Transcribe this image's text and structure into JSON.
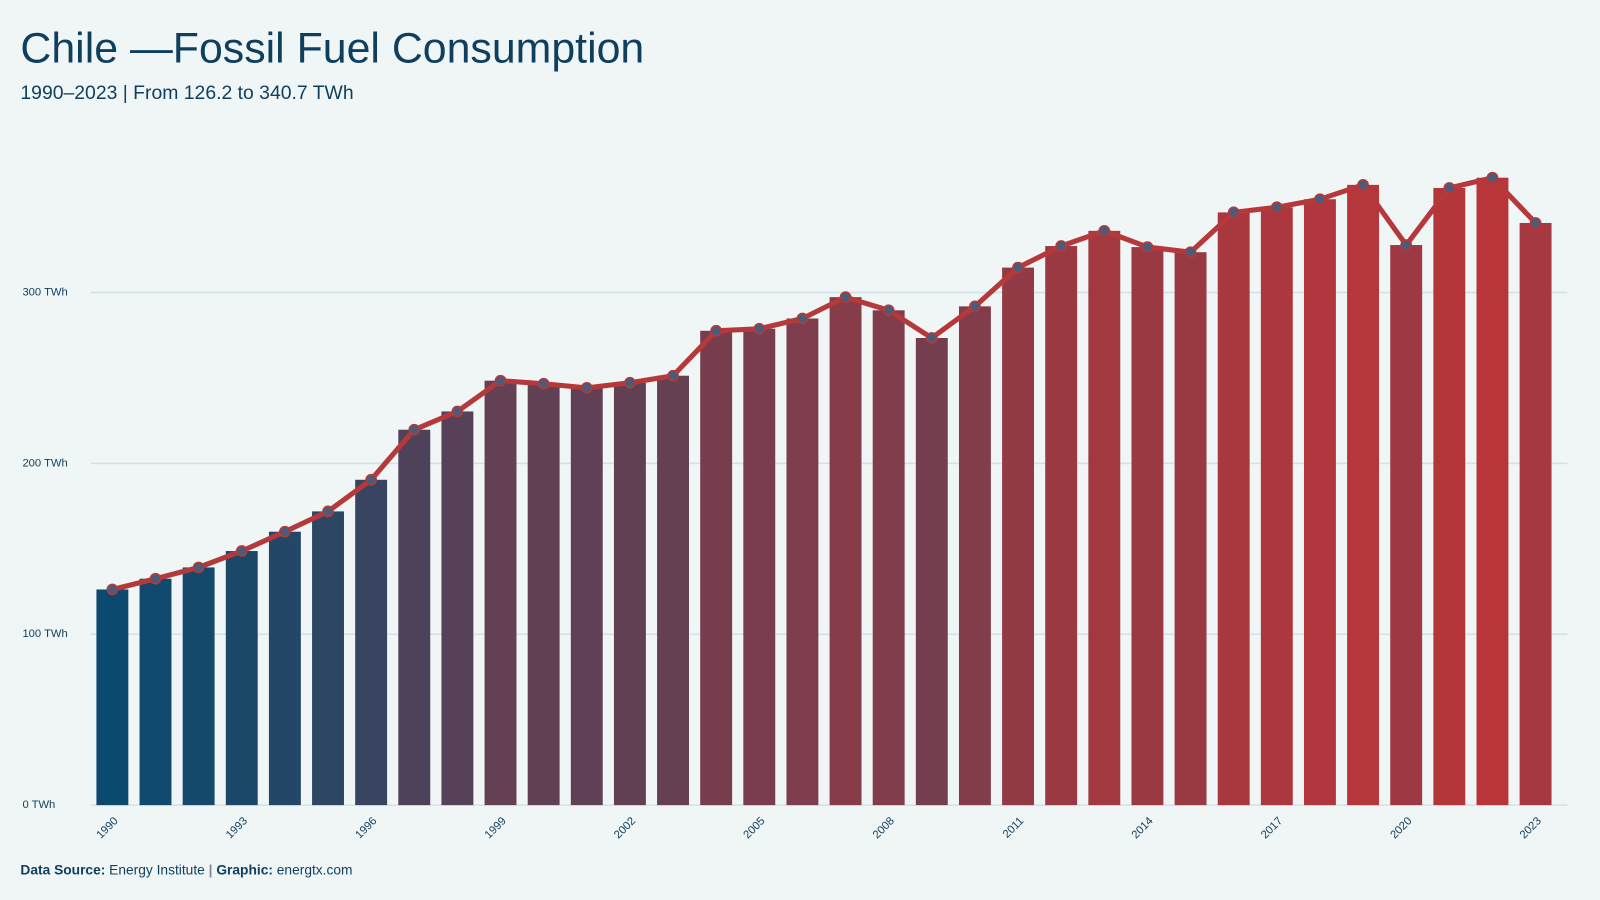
{
  "chart_data": {
    "type": "bar-line",
    "title": "Chile —Fossil Fuel Consumption",
    "subtitle": "1990–2023 | From 126.2 to 340.7 TWh",
    "x": [
      1990,
      1991,
      1992,
      1993,
      1994,
      1995,
      1996,
      1997,
      1998,
      1999,
      2000,
      2001,
      2002,
      2003,
      2004,
      2005,
      2006,
      2007,
      2008,
      2009,
      2010,
      2011,
      2012,
      2013,
      2014,
      2015,
      2016,
      2017,
      2018,
      2019,
      2020,
      2021,
      2022,
      2023
    ],
    "values": [
      126.2,
      132.5,
      139.1,
      148.7,
      160.0,
      171.9,
      190.4,
      219.7,
      230.4,
      248.4,
      246.6,
      244.2,
      247.2,
      251.3,
      277.6,
      278.8,
      284.8,
      297.3,
      289.6,
      273.4,
      291.9,
      314.6,
      327.2,
      336.1,
      326.6,
      323.6,
      346.9,
      349.9,
      354.6,
      363.0,
      327.8,
      361.2,
      367.2,
      340.7
    ],
    "xlim": [
      1989.5,
      2023.5
    ],
    "xticks": [
      1990,
      1993,
      1996,
      1999,
      2002,
      2005,
      2008,
      2011,
      2014,
      2017,
      2020,
      2023
    ],
    "ylim": [
      0,
      387
    ],
    "yticks": [
      {
        "value": 0,
        "label": "0 TWh"
      },
      {
        "value": 100,
        "label": "100 TWh"
      },
      {
        "value": 200,
        "label": "200 TWh"
      },
      {
        "value": 300,
        "label": "300 TWh"
      }
    ],
    "grid": true,
    "bar_color_scale": [
      "#0b4a6e",
      "#b8363a"
    ],
    "line_color": "#b5393a",
    "marker_color": "#4b5b78"
  },
  "footer": {
    "source_label": "Data Source:",
    "source": "Energy Institute",
    "separator": "|",
    "graphic_label": "Graphic:",
    "graphic": "energtx.com"
  }
}
